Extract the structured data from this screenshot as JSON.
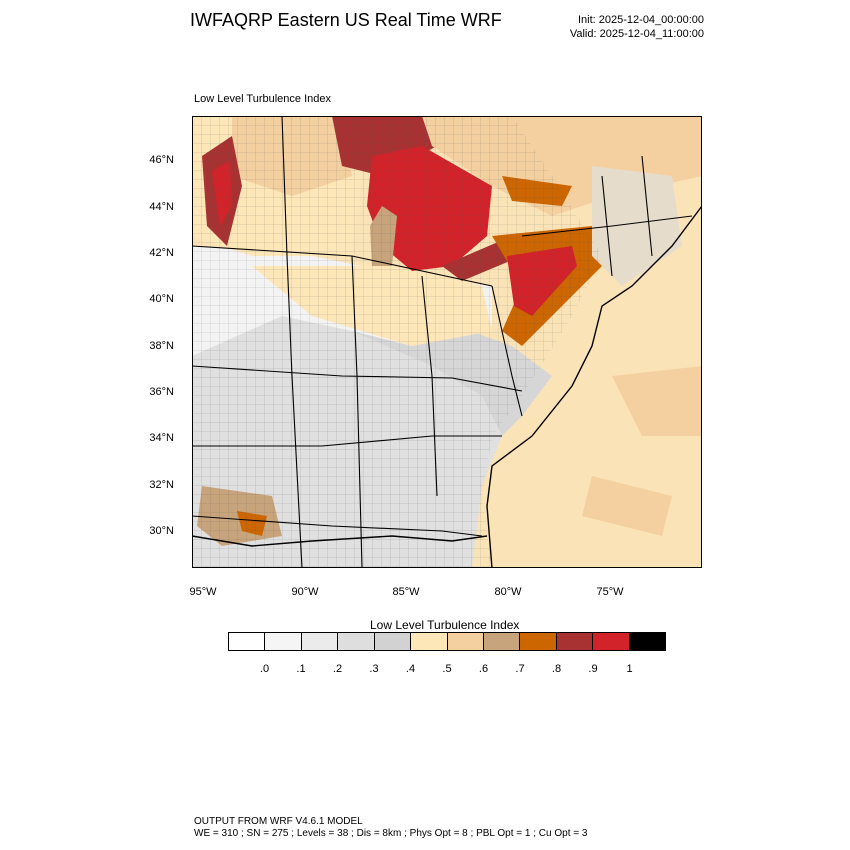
{
  "header": {
    "title": "IWFAQRP Eastern US Real Time WRF",
    "init": "Init: 2025-12-04_00:00:00",
    "valid": "Valid: 2025-12-04_11:00:00"
  },
  "plot": {
    "field_label": "Low Level Turbulence Index",
    "lat_labels": [
      "46°N",
      "44°N",
      "42°N",
      "40°N",
      "38°N",
      "36°N",
      "34°N",
      "32°N",
      "30°N"
    ],
    "lon_labels": [
      "95°W",
      "90°W",
      "85°W",
      "80°W",
      "75°W"
    ]
  },
  "colorbar": {
    "title": "Low Level Turbulence Index",
    "colors": [
      "#ffffff",
      "#f5f5f5",
      "#ebebeb",
      "#dedede",
      "#d2d2d2",
      "#fde6b8",
      "#f4d0a0",
      "#c8a47c",
      "#cc6600",
      "#a83232",
      "#d2232a",
      "#000000"
    ],
    "ticks": [
      ".0",
      ".1",
      ".2",
      ".3",
      ".4",
      ".5",
      ".6",
      ".7",
      ".8",
      ".9",
      "1"
    ]
  },
  "footer": {
    "line1": "OUTPUT FROM WRF V4.6.1 MODEL",
    "line2": "WE = 310 ; SN = 275 ; Levels = 38 ; Dis = 8km ; Phys Opt = 8 ; PBL Opt = 1 ; Cu Opt = 3"
  }
}
